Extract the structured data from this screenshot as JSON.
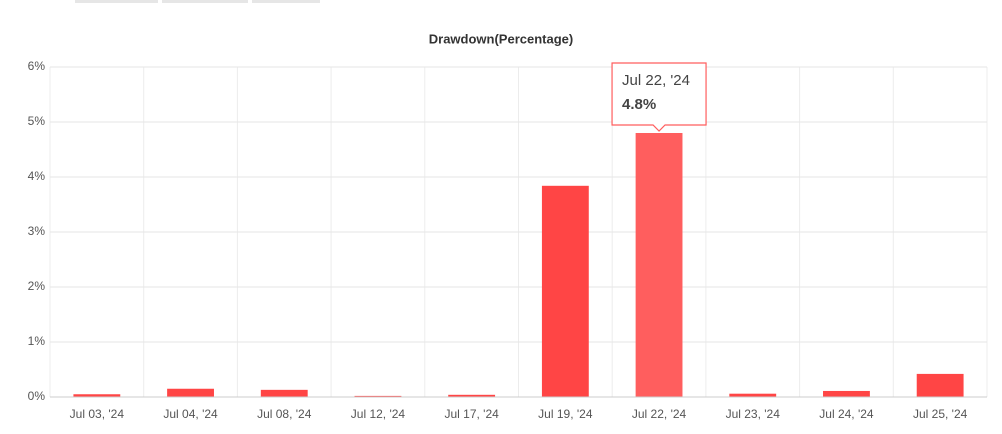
{
  "chart_data": {
    "type": "bar",
    "title": "Drawdown(Percentage)",
    "categories": [
      "Jul 03, '24",
      "Jul 04, '24",
      "Jul 08, '24",
      "Jul 12, '24",
      "Jul 17, '24",
      "Jul 19, '24",
      "Jul 22, '24",
      "Jul 23, '24",
      "Jul 24, '24",
      "Jul 25, '24"
    ],
    "values": [
      0.05,
      0.15,
      0.13,
      0.02,
      0.04,
      3.84,
      4.8,
      0.06,
      0.11,
      0.42
    ],
    "value_labels": [
      null,
      null,
      null,
      null,
      null,
      null,
      "4.8%",
      null,
      null,
      null
    ],
    "color": "#ff4545",
    "hover_color": "#ff5e5e",
    "ylim": [
      0,
      6
    ],
    "yticks": [
      {
        "value": 0,
        "label": "0%"
      },
      {
        "value": 1,
        "label": "1%"
      },
      {
        "value": 2,
        "label": "2%"
      },
      {
        "value": 3,
        "label": "3%"
      },
      {
        "value": 4,
        "label": "4%"
      },
      {
        "value": 5,
        "label": "5%"
      },
      {
        "value": 6,
        "label": "6%"
      }
    ],
    "grid": true
  }
}
